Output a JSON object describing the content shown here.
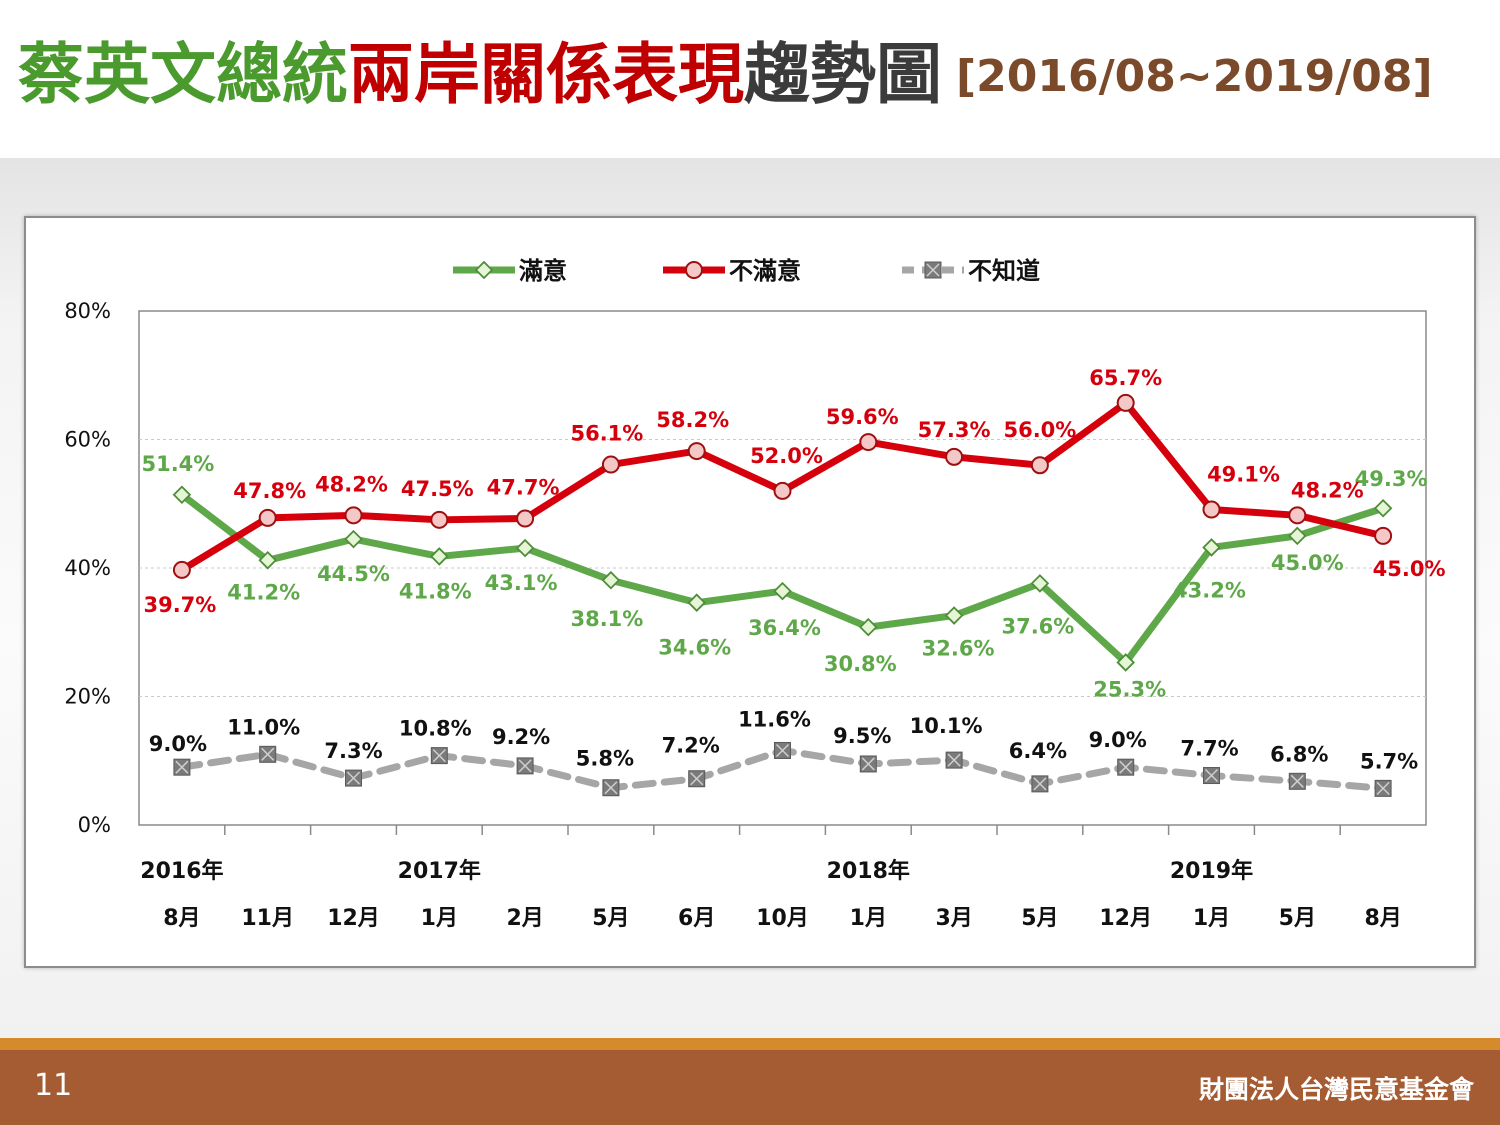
{
  "slide": {
    "title_parts": [
      {
        "text": "蔡英文總統",
        "color": "#4a9a2e"
      },
      {
        "text": "兩岸關係表現",
        "color": "#c00000"
      },
      {
        "text": "趨勢圖",
        "color": "#3b3b3b"
      }
    ],
    "date_range": "[2016/08~2019/08]",
    "date_range_color": "#7b4a2a",
    "page_number": "11",
    "organization": "財團法人台灣民意基金會"
  },
  "chart_data": {
    "type": "line",
    "categories": [
      "8月",
      "11月",
      "12月",
      "1月",
      "2月",
      "5月",
      "6月",
      "10月",
      "1月",
      "3月",
      "5月",
      "12月",
      "1月",
      "5月",
      "8月"
    ],
    "year_labels": [
      {
        "index": 0,
        "text": "2016年"
      },
      {
        "index": 3,
        "text": "2017年"
      },
      {
        "index": 8,
        "text": "2018年"
      },
      {
        "index": 12,
        "text": "2019年"
      }
    ],
    "y_ticks": [
      "0%",
      "20%",
      "40%",
      "60%",
      "80%"
    ],
    "ylim": [
      0,
      80
    ],
    "grid": true,
    "legend_position": "top",
    "series": [
      {
        "name": "滿意",
        "color": "#5fa84a",
        "marker": "diamond",
        "dashed": false,
        "values": [
          51.4,
          41.2,
          44.5,
          41.8,
          43.1,
          38.1,
          34.6,
          36.4,
          30.8,
          32.6,
          37.6,
          25.3,
          43.2,
          45.0,
          49.3
        ],
        "labels": [
          "51.4%",
          "41.2%",
          "44.5%",
          "41.8%",
          "43.1%",
          "38.1%",
          "34.6%",
          "36.4%",
          "30.8%",
          "32.6%",
          "37.6%",
          "25.3%",
          "43.2%",
          "45.0%",
          "49.3%"
        ]
      },
      {
        "name": "不滿意",
        "color": "#d6000c",
        "marker": "circle",
        "dashed": false,
        "values": [
          39.7,
          47.8,
          48.2,
          47.5,
          47.7,
          56.1,
          58.2,
          52.0,
          59.6,
          57.3,
          56.0,
          65.7,
          49.1,
          48.2,
          45.0
        ],
        "labels": [
          "39.7%",
          "47.8%",
          "48.2%",
          "47.5%",
          "47.7%",
          "56.1%",
          "58.2%",
          "52.0%",
          "59.6%",
          "57.3%",
          "56.0%",
          "65.7%",
          "49.1%",
          "48.2%",
          "45.0%"
        ]
      },
      {
        "name": "不知道",
        "color": "#a6a6a6",
        "marker": "xsquare",
        "dashed": true,
        "values": [
          9.0,
          11.0,
          7.3,
          10.8,
          9.2,
          5.8,
          7.2,
          11.6,
          9.5,
          10.1,
          6.4,
          9.0,
          7.7,
          6.8,
          5.7
        ],
        "labels": [
          "9.0%",
          "11.0%",
          "7.3%",
          "10.8%",
          "9.2%",
          "5.8%",
          "7.2%",
          "11.6%",
          "9.5%",
          "10.1%",
          "6.4%",
          "9.0%",
          "7.7%",
          "6.8%",
          "5.7%"
        ]
      }
    ]
  }
}
